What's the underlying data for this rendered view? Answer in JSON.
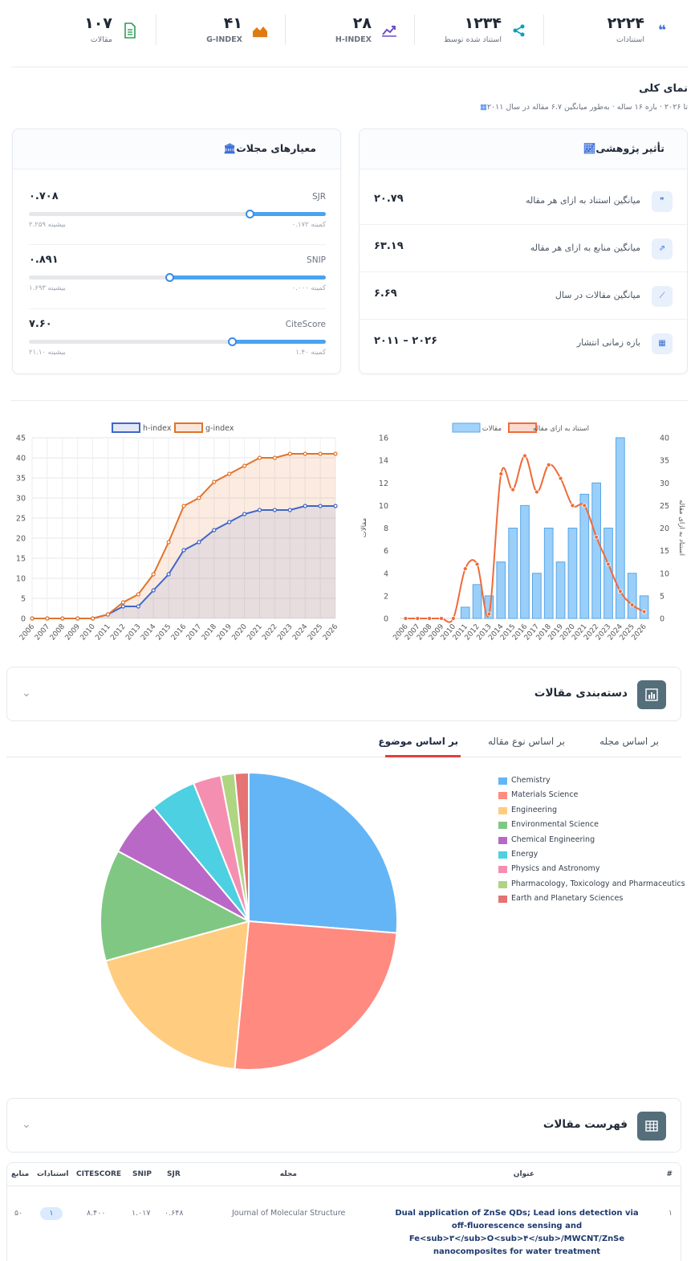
{
  "stats": [
    {
      "value": "۲۲۲۴",
      "label": "استنادات",
      "icon": "quote-icon",
      "color": "#3b6fd6"
    },
    {
      "value": "۱۲۳۴",
      "label": "استناد شده توسط",
      "icon": "share-icon",
      "color": "#0f9fb6"
    },
    {
      "value": "۲۸",
      "label": "H-INDEX",
      "icon": "trend-icon",
      "color": "#6d4fc8"
    },
    {
      "value": "۴۱",
      "label": "G-INDEX",
      "icon": "area-icon",
      "color": "#e07b12"
    },
    {
      "value": "۱۰۷",
      "label": "مقالات",
      "icon": "document-icon",
      "color": "#2e9d56"
    }
  ],
  "overview": {
    "title": "نمای کلی",
    "subtitle": "۲۰۱۱ تا ۲۰۲۶ · بازه ۱۶ ساله · به‌طور میانگین ۶.۷ مقاله در سال"
  },
  "impact": {
    "title": "تأثیر پژوهشی",
    "rows": [
      {
        "label": "میانگین استناد به ازای هر مقاله",
        "value": "۲۰.۷۹",
        "icon": "quote-icon"
      },
      {
        "label": "میانگین منابع به ازای هر مقاله",
        "value": "۶۳.۱۹",
        "icon": "share-square-icon"
      },
      {
        "label": "میانگین مقالات در سال",
        "value": "۶.۶۹",
        "icon": "line-chart-icon"
      },
      {
        "label": "بازه زمانی انتشار",
        "value": "۲۰۱۱ – ۲۰۲۶",
        "icon": "calendar-icon"
      }
    ]
  },
  "journal": {
    "title": "معیارهای مجلات",
    "metrics": [
      {
        "name": "SJR",
        "value": "۰.۷۰۸",
        "min": "کمینه ۰.۱۷۲",
        "max": "بیشینه ۲.۲۵۹",
        "level": 0.258
      },
      {
        "name": "SNIP",
        "value": "۰.۸۹۱",
        "min": "کمینه ۰.۰۰۰",
        "max": "بیشینه ۱.۶۹۳",
        "level": 0.526
      },
      {
        "name": "CiteScore",
        "value": "۷.۶۰",
        "min": "کمینه ۱.۴۰",
        "max": "بیشینه ۲۱.۱۰",
        "level": 0.315
      }
    ]
  },
  "chart_data": [
    {
      "type": "bar",
      "categories": [
        "2006",
        "2007",
        "2008",
        "2009",
        "2010",
        "2011",
        "2012",
        "2013",
        "2014",
        "2015",
        "2016",
        "2017",
        "2018",
        "2019",
        "2020",
        "2021",
        "2022",
        "2023",
        "2024",
        "2025",
        "2026"
      ],
      "series": [
        {
          "name": "مقالات",
          "type": "bar",
          "axis": "left",
          "values": [
            0,
            0,
            0,
            0,
            0,
            1,
            3,
            2,
            5,
            8,
            10,
            4,
            8,
            5,
            8,
            11,
            12,
            8,
            16,
            4,
            2
          ]
        },
        {
          "name": "استناد به ازای مقاله",
          "type": "line",
          "axis": "right",
          "values": [
            0,
            0,
            0,
            0,
            0,
            11,
            12,
            1,
            32,
            28.5,
            36,
            28,
            34,
            31,
            25,
            25,
            18,
            12,
            6,
            3,
            1.5
          ]
        }
      ],
      "ylabel": "مقالات",
      "y2label": "استناد به ازای مقاله",
      "ylim": [
        0,
        16
      ],
      "y2lim": [
        0,
        40
      ],
      "yticks": [
        0,
        2,
        4,
        6,
        8,
        10,
        12,
        14,
        16
      ],
      "y2ticks": [
        0,
        5,
        10,
        15,
        20,
        25,
        30,
        35,
        40
      ],
      "legend": "top",
      "grid": false
    },
    {
      "type": "area",
      "categories": [
        "2006",
        "2007",
        "2008",
        "2009",
        "2010",
        "2011",
        "2012",
        "2013",
        "2014",
        "2015",
        "2016",
        "2017",
        "2018",
        "2019",
        "2020",
        "2021",
        "2022",
        "2023",
        "2024",
        "2025",
        "2026"
      ],
      "series": [
        {
          "name": "h-index",
          "color": "#3f66c9",
          "values": [
            0,
            0,
            0,
            0,
            0,
            1,
            3,
            3,
            7,
            11,
            17,
            19,
            22,
            24,
            26,
            27,
            27,
            27,
            28,
            28,
            28
          ]
        },
        {
          "name": "g-index",
          "color": "#e0732b",
          "values": [
            0,
            0,
            0,
            0,
            0,
            1,
            4,
            6,
            11,
            19,
            28,
            30,
            34,
            36,
            38,
            40,
            40,
            41,
            41,
            41,
            41
          ]
        }
      ],
      "ylim": [
        0,
        45
      ],
      "yticks": [
        0,
        5,
        10,
        15,
        20,
        25,
        30,
        35,
        40,
        45
      ],
      "legend": "top",
      "grid": true
    },
    {
      "type": "pie",
      "categories": [
        "Chemistry",
        "Materials Science",
        "Engineering",
        "Environmental Science",
        "Chemical Engineering",
        "Energy",
        "Physics and Astronomy",
        "Pharmacology, Toxicology and Pharmaceutics",
        "Earth and Planetary Sciences"
      ],
      "values": [
        26,
        25,
        19,
        12,
        6,
        5,
        3,
        1.5,
        1.5
      ],
      "colors": [
        "#64b5f6",
        "#ff8a80",
        "#ffcc80",
        "#81c784",
        "#ba68c8",
        "#4dd0e1",
        "#f48fb1",
        "#aed581",
        "#e57373"
      ],
      "legend": "right"
    }
  ],
  "classification": {
    "title": "دسته‌بندی مقالات",
    "tabs": [
      "بر اساس مجله",
      "بر اساس نوع مقاله",
      "بر اساس موضوع"
    ],
    "active_tab": "بر اساس موضوع"
  },
  "articles": {
    "title": "فهرست مقالات",
    "columns": [
      "#",
      "عنوان",
      "مجله",
      "SJR",
      "SNIP",
      "CITESCORE",
      "استنادات",
      "منابع"
    ],
    "rows": [
      {
        "index": "۱",
        "title": "Dual application of ZnSe QDs; Lead ions detection via off-fluorescence sensing and Fe<sub>۳</sub>O<sub>۴</sub>/MWCNT/ZnSe nanocomposites for water treatment",
        "journal": "Journal of Molecular Structure",
        "sjr": "۰.۶۴۸",
        "snip": "۱.۰۱۷",
        "citescore": "۸.۴۰۰",
        "citations": "۱",
        "references": "۵۰"
      }
    ]
  }
}
